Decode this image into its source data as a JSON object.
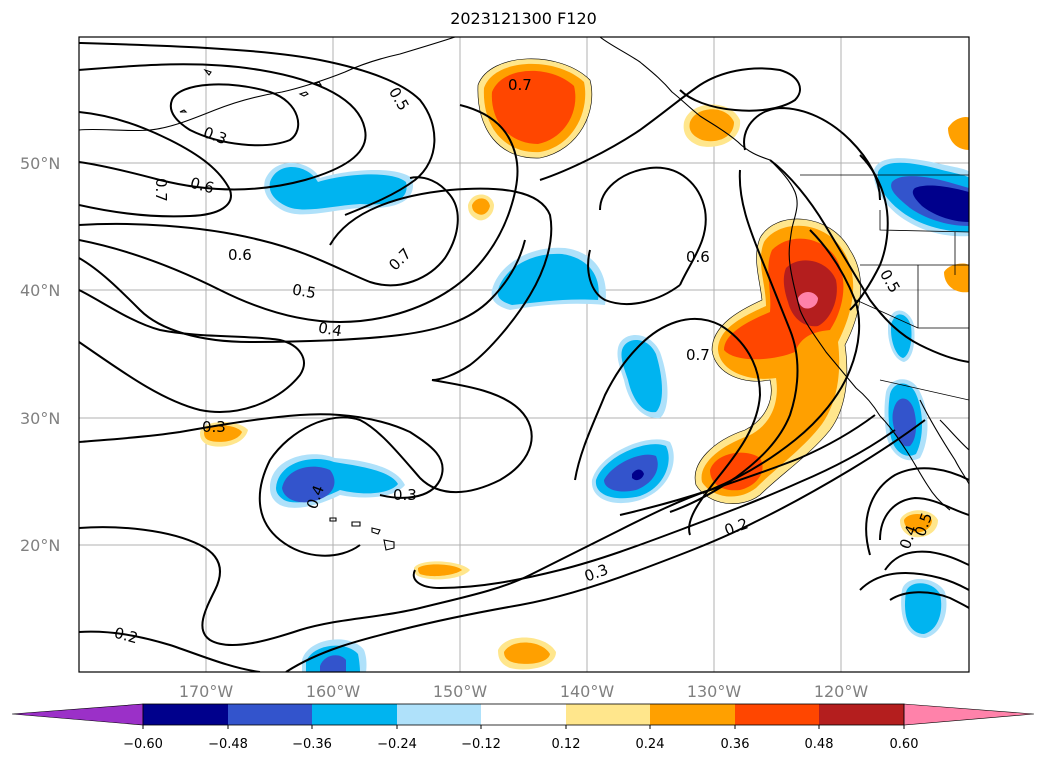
{
  "title": "2023121300 F120",
  "lat_labels": [
    "50°N",
    "40°N",
    "30°N",
    "20°N"
  ],
  "lon_labels": [
    "170°W",
    "160°W",
    "150°W",
    "140°W",
    "130°W",
    "120°W"
  ],
  "contour_labels": [
    "0.7",
    "0.5",
    "0.3",
    "0.7",
    "0.6",
    "0.7",
    "0.6",
    "0.5",
    "0.4",
    "0.6",
    "0.5",
    "0.7",
    "0.3",
    "0.4",
    "0.3",
    "0.3",
    "0.2",
    "0.2",
    "0.4",
    "0.5"
  ],
  "colorbar": {
    "ticks": [
      "−0.60",
      "−0.48",
      "−0.36",
      "−0.24",
      "−0.12",
      "0.12",
      "0.24",
      "0.36",
      "0.48",
      "0.60"
    ],
    "colors": [
      "#9b30c8",
      "#00008c",
      "#3354cc",
      "#00b4f0",
      "#afe1fa",
      "#ffffff",
      "#ffe68c",
      "#ffa000",
      "#ff4600",
      "#b41e1e",
      "#ff82aa"
    ]
  },
  "fills": {
    "light_yellow": "#ffe68c",
    "orange": "#ffa000",
    "red_orange": "#ff4600",
    "dark_red": "#b41e1e",
    "pink": "#ff82aa",
    "cyan": "#00b4f0",
    "light_blue": "#afe1fa",
    "royal_blue": "#3354cc",
    "navy": "#00008c"
  }
}
